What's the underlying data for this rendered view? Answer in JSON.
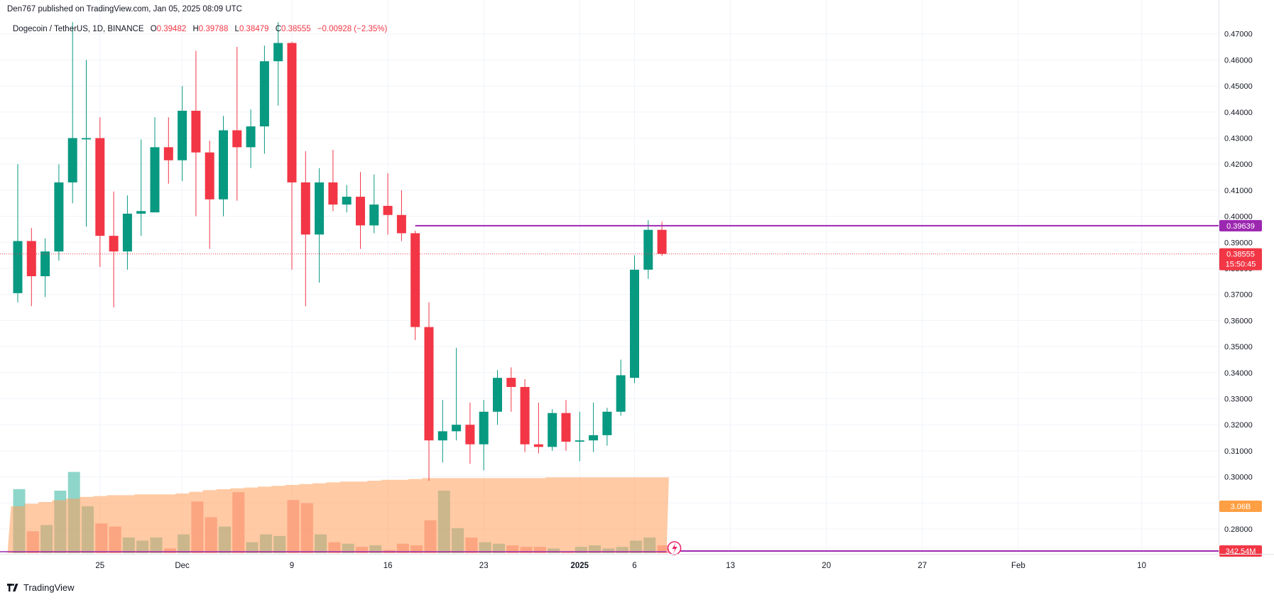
{
  "header": {
    "published": "Den767 published on TradingView.com, Jan 05, 2025 08:09 UTC"
  },
  "legend": {
    "symbol": "Dogecoin / TetherUS, 1D, BINANCE",
    "o_label": "O",
    "o": "0.39482",
    "h_label": "H",
    "h": "0.39788",
    "l_label": "L",
    "l": "0.38479",
    "c_label": "C",
    "c": "0.38555",
    "change": "−0.00928 (−2.35%)"
  },
  "footer": {
    "brand": "TradingView"
  },
  "colors": {
    "up": "#089981",
    "down": "#f23645",
    "level": "#9c27b0",
    "vp": "#ff9f5a"
  },
  "chart_data": {
    "type": "candlestick",
    "y_ticks": [
      "0.28000",
      "0.29000",
      "0.30000",
      "0.31000",
      "0.32000",
      "0.33000",
      "0.34000",
      "0.35000",
      "0.36000",
      "0.37000",
      "0.38000",
      "0.39000",
      "0.40000",
      "0.41000",
      "0.42000",
      "0.43000",
      "0.44000",
      "0.45000",
      "0.46000",
      "0.47000"
    ],
    "ylim": [
      0.2715,
      0.4757
    ],
    "x_ticks": [
      {
        "i": 6,
        "label": "25"
      },
      {
        "i": 12,
        "label": "Dec"
      },
      {
        "i": 20,
        "label": "9"
      },
      {
        "i": 27,
        "label": "16"
      },
      {
        "i": 34,
        "label": "23"
      },
      {
        "i": 41,
        "label": "2025",
        "bold": true
      },
      {
        "i": 45,
        "label": "6"
      },
      {
        "i": 52,
        "label": "13"
      },
      {
        "i": 59,
        "label": "20"
      },
      {
        "i": 66,
        "label": "27"
      },
      {
        "i": 73,
        "label": "Feb"
      },
      {
        "i": 82,
        "label": "10"
      }
    ],
    "price_labels": {
      "level": "0.39639",
      "last": "0.38555",
      "countdown": "15:50:45",
      "vp_value": "3.06B",
      "volume": "342.54M"
    },
    "level_price": 0.39639,
    "last_price": 0.38555,
    "candles": [
      {
        "o": 0.3705,
        "h": 0.42,
        "l": 0.367,
        "c": 0.3905
      },
      {
        "o": 0.3905,
        "h": 0.3955,
        "l": 0.3655,
        "c": 0.377
      },
      {
        "o": 0.377,
        "h": 0.3915,
        "l": 0.369,
        "c": 0.3865
      },
      {
        "o": 0.3865,
        "h": 0.42,
        "l": 0.383,
        "c": 0.413
      },
      {
        "o": 0.413,
        "h": 0.4745,
        "l": 0.405,
        "c": 0.43
      },
      {
        "o": 0.4295,
        "h": 0.46,
        "l": 0.396,
        "c": 0.43
      },
      {
        "o": 0.43,
        "h": 0.438,
        "l": 0.3805,
        "c": 0.3925
      },
      {
        "o": 0.3925,
        "h": 0.4095,
        "l": 0.365,
        "c": 0.3865
      },
      {
        "o": 0.3865,
        "h": 0.408,
        "l": 0.3795,
        "c": 0.401
      },
      {
        "o": 0.401,
        "h": 0.4295,
        "l": 0.3925,
        "c": 0.402
      },
      {
        "o": 0.4015,
        "h": 0.438,
        "l": 0.4015,
        "c": 0.4265
      },
      {
        "o": 0.4265,
        "h": 0.438,
        "l": 0.4125,
        "c": 0.4215
      },
      {
        "o": 0.4215,
        "h": 0.45,
        "l": 0.4135,
        "c": 0.4405
      },
      {
        "o": 0.4405,
        "h": 0.4635,
        "l": 0.4,
        "c": 0.4245
      },
      {
        "o": 0.4245,
        "h": 0.429,
        "l": 0.3875,
        "c": 0.4065
      },
      {
        "o": 0.4065,
        "h": 0.4385,
        "l": 0.4,
        "c": 0.433
      },
      {
        "o": 0.433,
        "h": 0.465,
        "l": 0.406,
        "c": 0.4265
      },
      {
        "o": 0.4265,
        "h": 0.441,
        "l": 0.4185,
        "c": 0.4345
      },
      {
        "o": 0.4345,
        "h": 0.4655,
        "l": 0.424,
        "c": 0.4595
      },
      {
        "o": 0.4595,
        "h": 0.4745,
        "l": 0.4425,
        "c": 0.4665
      },
      {
        "o": 0.4665,
        "h": 0.467,
        "l": 0.3795,
        "c": 0.413
      },
      {
        "o": 0.413,
        "h": 0.425,
        "l": 0.3655,
        "c": 0.393
      },
      {
        "o": 0.393,
        "h": 0.4185,
        "l": 0.3745,
        "c": 0.413
      },
      {
        "o": 0.413,
        "h": 0.4255,
        "l": 0.402,
        "c": 0.4045
      },
      {
        "o": 0.4045,
        "h": 0.412,
        "l": 0.4015,
        "c": 0.4075
      },
      {
        "o": 0.4075,
        "h": 0.417,
        "l": 0.3875,
        "c": 0.3965
      },
      {
        "o": 0.3965,
        "h": 0.416,
        "l": 0.3935,
        "c": 0.4045
      },
      {
        "o": 0.404,
        "h": 0.4165,
        "l": 0.393,
        "c": 0.4005
      },
      {
        "o": 0.4005,
        "h": 0.41,
        "l": 0.3905,
        "c": 0.3935
      },
      {
        "o": 0.3935,
        "h": 0.3945,
        "l": 0.3525,
        "c": 0.3575
      },
      {
        "o": 0.3575,
        "h": 0.367,
        "l": 0.2985,
        "c": 0.314
      },
      {
        "o": 0.314,
        "h": 0.3295,
        "l": 0.3055,
        "c": 0.3175
      },
      {
        "o": 0.3175,
        "h": 0.3495,
        "l": 0.314,
        "c": 0.32
      },
      {
        "o": 0.32,
        "h": 0.3285,
        "l": 0.305,
        "c": 0.3125
      },
      {
        "o": 0.3125,
        "h": 0.3295,
        "l": 0.3025,
        "c": 0.325
      },
      {
        "o": 0.325,
        "h": 0.341,
        "l": 0.32,
        "c": 0.338
      },
      {
        "o": 0.338,
        "h": 0.342,
        "l": 0.325,
        "c": 0.3345
      },
      {
        "o": 0.3345,
        "h": 0.3375,
        "l": 0.3095,
        "c": 0.3125
      },
      {
        "o": 0.3125,
        "h": 0.3285,
        "l": 0.309,
        "c": 0.3115
      },
      {
        "o": 0.3115,
        "h": 0.326,
        "l": 0.31,
        "c": 0.3245
      },
      {
        "o": 0.3245,
        "h": 0.3295,
        "l": 0.31,
        "c": 0.3135
      },
      {
        "o": 0.3135,
        "h": 0.325,
        "l": 0.306,
        "c": 0.314
      },
      {
        "o": 0.314,
        "h": 0.3285,
        "l": 0.3095,
        "c": 0.316
      },
      {
        "o": 0.316,
        "h": 0.3265,
        "l": 0.312,
        "c": 0.325
      },
      {
        "o": 0.325,
        "h": 0.345,
        "l": 0.3235,
        "c": 0.339
      },
      {
        "o": 0.338,
        "h": 0.385,
        "l": 0.336,
        "c": 0.3795
      },
      {
        "o": 0.3795,
        "h": 0.3985,
        "l": 0.376,
        "c": 0.3948
      },
      {
        "o": 0.3948,
        "h": 0.3979,
        "l": 0.3848,
        "c": 0.3856
      }
    ],
    "volumes": [
      0.41,
      0.14,
      0.18,
      0.4,
      0.52,
      0.3,
      0.19,
      0.17,
      0.1,
      0.08,
      0.1,
      0.03,
      0.12,
      0.33,
      0.23,
      0.17,
      0.39,
      0.07,
      0.12,
      0.11,
      0.34,
      0.32,
      0.12,
      0.07,
      0.06,
      0.04,
      0.05,
      0.02,
      0.06,
      0.05,
      0.21,
      0.4,
      0.16,
      0.1,
      0.07,
      0.06,
      0.05,
      0.04,
      0.04,
      0.03,
      0.01,
      0.04,
      0.05,
      0.03,
      0.04,
      0.08,
      0.1,
      0.05
    ],
    "vp_profile": [
      0.055,
      0.058,
      0.06,
      0.062,
      0.064,
      0.066,
      0.067,
      0.068,
      0.068,
      0.069,
      0.069,
      0.069,
      0.07,
      0.072,
      0.074,
      0.075,
      0.076,
      0.077,
      0.078,
      0.079,
      0.08,
      0.081,
      0.082,
      0.083,
      0.084,
      0.084,
      0.085,
      0.086,
      0.086,
      0.087,
      0.088,
      0.088,
      0.088,
      0.088,
      0.088,
      0.088,
      0.088,
      0.088,
      0.088,
      0.089,
      0.089,
      0.089,
      0.089,
      0.089,
      0.089,
      0.089,
      0.089,
      0.089
    ]
  }
}
